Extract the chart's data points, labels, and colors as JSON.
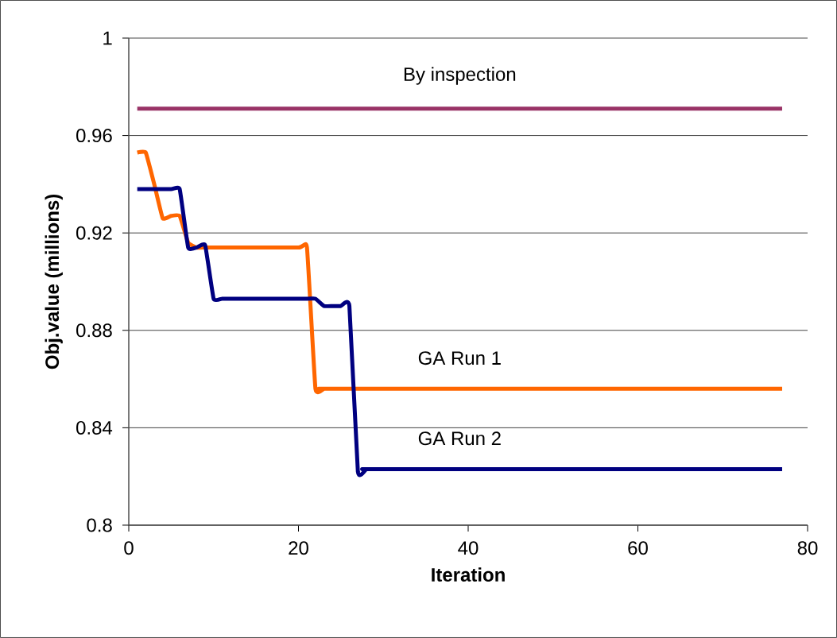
{
  "chart_data": {
    "type": "line",
    "xlabel": "Iteration",
    "ylabel": "Obj.value (millions)",
    "xlim": [
      0,
      80
    ],
    "xticks": [
      0,
      20,
      40,
      60,
      80
    ],
    "ylim": [
      0.8,
      1
    ],
    "yticks": [
      0.8,
      0.84,
      0.88,
      0.92,
      0.96,
      1
    ],
    "grid": "y",
    "marker": "none",
    "line_style": "solid",
    "series": [
      {
        "name": "By inspection",
        "color": "#993366",
        "x": [
          1,
          77
        ],
        "values": [
          0.971,
          0.971
        ]
      },
      {
        "name": "GA Run 1",
        "color": "#ff6600",
        "x": [
          1,
          2,
          3,
          4,
          5,
          6,
          7,
          8,
          9,
          20,
          21,
          22,
          23,
          24,
          77
        ],
        "values": [
          0.953,
          0.953,
          0.94,
          0.926,
          0.927,
          0.927,
          0.916,
          0.914,
          0.914,
          0.914,
          0.914,
          0.856,
          0.856,
          0.856,
          0.856
        ]
      },
      {
        "name": "GA Run 2",
        "color": "#000080",
        "x": [
          1,
          5,
          6,
          7,
          8,
          9,
          10,
          11,
          12,
          21,
          22,
          23,
          24,
          25,
          26,
          27,
          28,
          29,
          77
        ],
        "values": [
          0.938,
          0.938,
          0.938,
          0.914,
          0.914,
          0.915,
          0.893,
          0.893,
          0.893,
          0.893,
          0.893,
          0.89,
          0.89,
          0.89,
          0.89,
          0.822,
          0.823,
          0.823,
          0.823
        ]
      }
    ]
  }
}
